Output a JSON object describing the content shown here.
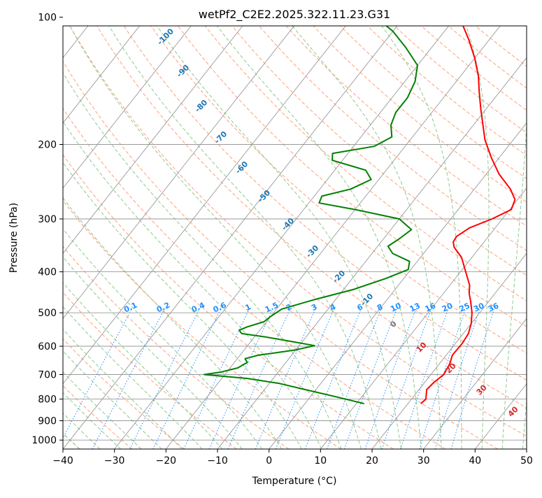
{
  "chart_data": {
    "type": "line",
    "subtype": "skew-T log-p",
    "title": "wetPf2_C2E2.2025.322.11.23.G31",
    "xlabel": "Temperature (°C)",
    "ylabel": "Pressure (hPa)",
    "xlim": [
      -40,
      50
    ],
    "ylim_hpa": [
      1050,
      100
    ],
    "y_scale": "log",
    "x_ticks": [
      -40,
      -30,
      -20,
      -10,
      0,
      10,
      20,
      30,
      40,
      50
    ],
    "x_tick_labels": [
      "−40",
      "−30",
      "−20",
      "−10",
      "0",
      "10",
      "20",
      "30",
      "40",
      "50"
    ],
    "y_ticks": [
      100,
      200,
      300,
      400,
      500,
      600,
      700,
      800,
      900,
      1000
    ],
    "y_tick_labels": [
      "100",
      "200",
      "300",
      "400",
      "500",
      "600",
      "700",
      "800",
      "900",
      "1000"
    ],
    "grid": true,
    "series": [
      {
        "color": "#ff0000",
        "points": [
          [
            22.5,
            820
          ],
          [
            22.8,
            800
          ],
          [
            21.5,
            760
          ],
          [
            21.8,
            730
          ],
          [
            22.5,
            700
          ],
          [
            22.0,
            660
          ],
          [
            21.2,
            630
          ],
          [
            21.3,
            590
          ],
          [
            21.0,
            560
          ],
          [
            20.0,
            530
          ],
          [
            18.5,
            500
          ],
          [
            16.5,
            470
          ],
          [
            15.0,
            450
          ],
          [
            13.8,
            430
          ],
          [
            11.0,
            400
          ],
          [
            8.0,
            370
          ],
          [
            5.0,
            350
          ],
          [
            4.0,
            340
          ],
          [
            3.8,
            330
          ],
          [
            5.0,
            315
          ],
          [
            8.0,
            300
          ],
          [
            10.3,
            285
          ],
          [
            9.5,
            270
          ],
          [
            7.0,
            255
          ],
          [
            2.5,
            235
          ],
          [
            -1.5,
            215
          ],
          [
            -5.5,
            195
          ],
          [
            -8.5,
            178
          ],
          [
            -11.0,
            165
          ],
          [
            -14.0,
            150
          ],
          [
            -16.5,
            138
          ],
          [
            -20.0,
            125
          ],
          [
            -24.0,
            113
          ],
          [
            -28.0,
            103
          ],
          [
            -28.5,
            100
          ]
        ]
      },
      {
        "color": "#008000",
        "points": [
          [
            11.5,
            820
          ],
          [
            5.0,
            790
          ],
          [
            -2.0,
            760
          ],
          [
            -8.0,
            735
          ],
          [
            -15.0,
            715
          ],
          [
            -24.0,
            700
          ],
          [
            -21.0,
            690
          ],
          [
            -18.5,
            675
          ],
          [
            -17.5,
            655
          ],
          [
            -18.5,
            642
          ],
          [
            -16.5,
            630
          ],
          [
            -10.0,
            612
          ],
          [
            -7.0,
            598
          ],
          [
            -12.0,
            585
          ],
          [
            -18.0,
            570
          ],
          [
            -23.0,
            560
          ],
          [
            -24.0,
            550
          ],
          [
            -23.0,
            540
          ],
          [
            -20.5,
            525
          ],
          [
            -20.0,
            510
          ],
          [
            -19.0,
            490
          ],
          [
            -14.0,
            465
          ],
          [
            -8.0,
            440
          ],
          [
            -3.5,
            415
          ],
          [
            -0.5,
            395
          ],
          [
            -1.5,
            378
          ],
          [
            -6.0,
            362
          ],
          [
            -8.0,
            348
          ],
          [
            -7.0,
            335
          ],
          [
            -6.0,
            318
          ],
          [
            -10.0,
            300
          ],
          [
            -20.0,
            285
          ],
          [
            -28.0,
            275
          ],
          [
            -28.5,
            265
          ],
          [
            -24.0,
            255
          ],
          [
            -21.5,
            242
          ],
          [
            -24.0,
            230
          ],
          [
            -32.0,
            218
          ],
          [
            -33.0,
            210
          ],
          [
            -26.0,
            202
          ],
          [
            -24.0,
            192
          ],
          [
            -26.0,
            180
          ],
          [
            -27.0,
            168
          ],
          [
            -27.0,
            155
          ],
          [
            -28.0,
            142
          ],
          [
            -30.0,
            130
          ],
          [
            -35.0,
            118
          ],
          [
            -40.0,
            108
          ],
          [
            -45.5,
            100
          ]
        ]
      }
    ],
    "dry_adiabat_labels": [
      {
        "text": "-100",
        "theta_c": -100
      },
      {
        "text": "-90",
        "theta_c": -90
      },
      {
        "text": "-80",
        "theta_c": -80
      },
      {
        "text": "-70",
        "theta_c": -70
      },
      {
        "text": "-60",
        "theta_c": -60
      },
      {
        "text": "-50",
        "theta_c": -50
      },
      {
        "text": "-40",
        "theta_c": -40
      },
      {
        "text": "-30",
        "theta_c": -30
      },
      {
        "text": "-20",
        "theta_c": -20
      },
      {
        "text": "-10",
        "theta_c": -10
      }
    ],
    "mixing_ratio_labels": [
      "0.1",
      "0.2",
      "0.4",
      "0.6",
      "1",
      "1.5",
      "2",
      "3",
      "4",
      "6",
      "8",
      "10",
      "13",
      "16",
      "20",
      "25",
      "30",
      "36"
    ],
    "moist_adiabat_labels": [
      "0",
      "10",
      "20",
      "30",
      "40"
    ],
    "colors": {
      "temperature": "#ff0000",
      "dewpoint": "#008000",
      "isotherm": "#999999",
      "dry_adiabat": "#ffa07a",
      "moist_adiabat": "#8fc98f",
      "mixing_ratio": "#1e90ff",
      "dry_label": "#1f77b4",
      "moist_label": "#d62728",
      "freezing": "#777777"
    }
  }
}
